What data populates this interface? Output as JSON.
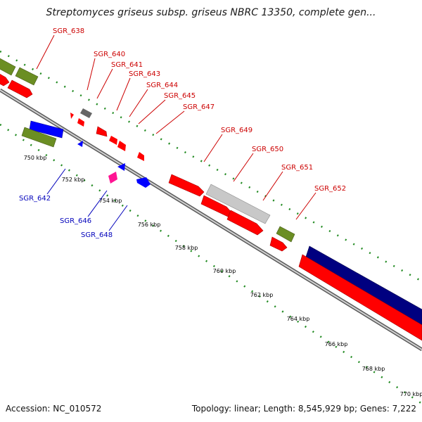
{
  "title": "Streptomyces griseus subsp. griseus NBRC 13350, complete gen...",
  "footer": {
    "accession": "Accession: NC_010572",
    "topology": "Topology: linear; Length: 8,545,929 bp; Genes: 7,222"
  },
  "colors": {
    "forward_gene": "#ff0000",
    "reverse_gene": "#0000ff",
    "rna_gene": "#6b8e23",
    "pseudo_gene": "#808080",
    "highlight_gene": "#ff1493",
    "tick_green": "#228b22",
    "backbone": "#808080",
    "label_forward": "#cc0000",
    "label_reverse": "#0000bb"
  },
  "ticks": [
    "750 kbp",
    "752 kbp",
    "754 kbp",
    "756 kbp",
    "758 kbp",
    "760 kbp",
    "762 kbp",
    "764 kbp",
    "766 kbp",
    "768 kbp",
    "770 kbp"
  ],
  "labels_forward": [
    "SGR_638",
    "SGR_640",
    "SGR_641",
    "SGR_643",
    "SGR_644",
    "SGR_645",
    "SGR_647",
    "SGR_649",
    "SGR_650",
    "SGR_651",
    "SGR_652"
  ],
  "labels_reverse": [
    "SGR_642",
    "SGR_646",
    "SGR_648"
  ]
}
